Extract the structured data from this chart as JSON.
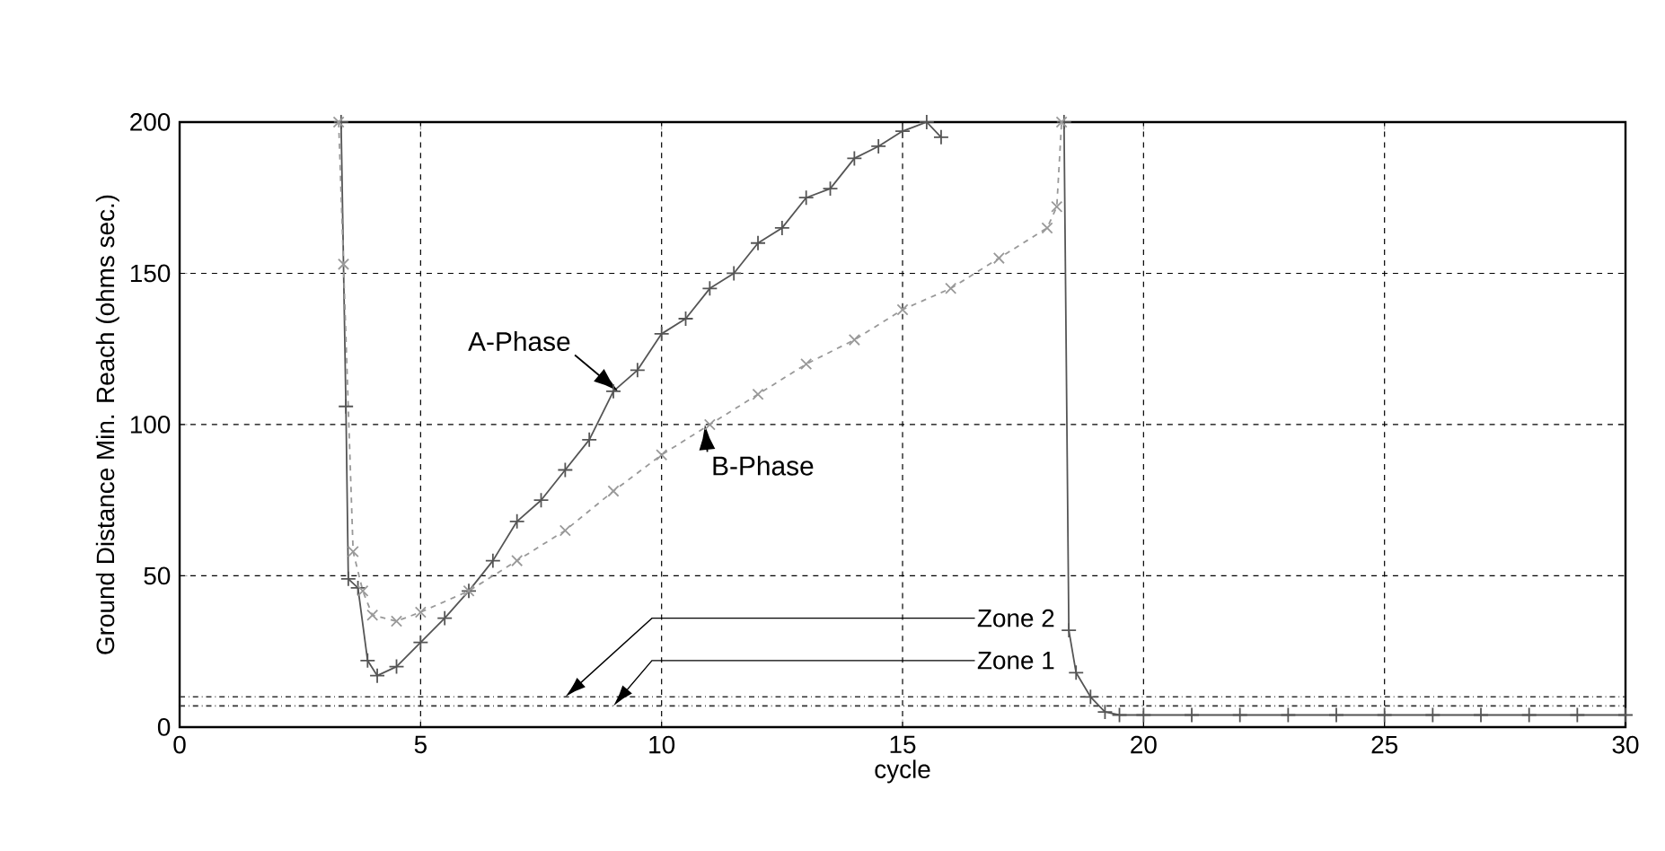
{
  "chart_data": {
    "type": "line",
    "xlabel": "cycle",
    "ylabel": "Ground Distance Min. Reach (ohms sec.)",
    "xlim": [
      0,
      30
    ],
    "ylim": [
      0,
      200
    ],
    "xticks": [
      0,
      5,
      10,
      15,
      20,
      25,
      30
    ],
    "yticks": [
      0,
      50,
      100,
      150,
      200
    ],
    "grid": true,
    "series": [
      {
        "color": "#555555",
        "marker": "plus",
        "line_style": "solid",
        "x": [
          3.35,
          3.45,
          3.5,
          3.7,
          3.9,
          4.1,
          4.5,
          5,
          5.5,
          6,
          6.5,
          7,
          7.5,
          8,
          8.5,
          9,
          9.5,
          10,
          10.5,
          11,
          11.5,
          12,
          12.5,
          13,
          13.5,
          14,
          14.5,
          15,
          15.5,
          15.8,
          18.2,
          18.35,
          18.45,
          18.6,
          18.9,
          19.2,
          19.5,
          20,
          21,
          22,
          23,
          24,
          25,
          26,
          27,
          28,
          29,
          30
        ],
        "values": [
          200,
          106,
          49,
          46,
          22,
          17,
          20,
          28,
          36,
          45,
          55,
          68,
          75,
          85,
          95,
          111,
          118,
          130,
          135,
          145,
          150,
          160,
          165,
          175,
          178,
          188,
          192,
          197,
          200,
          195,
          null,
          200,
          32,
          18,
          10,
          5,
          4,
          4,
          4,
          4,
          4,
          4,
          4,
          4,
          4,
          4,
          4,
          4
        ]
      },
      {
        "color": "#999999",
        "marker": "cross",
        "line_style": "dashed",
        "x": [
          3.3,
          3.4,
          3.6,
          3.8,
          4.0,
          4.5,
          5,
          6,
          7,
          8,
          9,
          10,
          11,
          12,
          13,
          14,
          15,
          16,
          17,
          18,
          18.2,
          18.3
        ],
        "values": [
          200,
          153,
          58,
          45,
          37,
          35,
          38,
          45,
          55,
          65,
          78,
          90,
          100,
          110,
          120,
          128,
          138,
          145,
          155,
          165,
          172,
          200
        ]
      }
    ],
    "ref_lines": [
      {
        "axis": "y",
        "value": 10,
        "label": "Zone 2",
        "color": "#333333",
        "line_style": "dashdot"
      },
      {
        "axis": "y",
        "value": 7,
        "label": "Zone 1",
        "color": "#333333",
        "line_style": "dashdot"
      }
    ],
    "annotations": [
      {
        "text": "A-Phase",
        "x": 9.1,
        "y": 111
      },
      {
        "text": "B-Phase",
        "x": 10.9,
        "y": 100
      }
    ]
  }
}
